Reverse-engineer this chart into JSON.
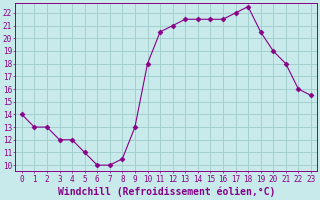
{
  "x": [
    0,
    1,
    2,
    3,
    4,
    5,
    6,
    7,
    8,
    9,
    10,
    11,
    12,
    13,
    14,
    15,
    16,
    17,
    18,
    19,
    20,
    21,
    22,
    23
  ],
  "y": [
    14,
    13,
    13,
    12,
    12,
    11,
    10,
    10,
    10.5,
    13,
    18,
    20.5,
    21,
    21.5,
    21.5,
    21.5,
    21.5,
    22,
    22.5,
    20.5,
    19,
    18,
    16,
    15.5
  ],
  "line_color": "#880088",
  "marker": "D",
  "marker_size": 2.5,
  "bg_color": "#c8eaea",
  "grid_color": "#a0cccc",
  "xlabel": "Windchill (Refroidissement éolien,°C)",
  "xlabel_fontsize": 7,
  "ylabel_ticks": [
    10,
    11,
    12,
    13,
    14,
    15,
    16,
    17,
    18,
    19,
    20,
    21,
    22
  ],
  "xlim": [
    -0.5,
    23.5
  ],
  "ylim": [
    9.5,
    22.8
  ],
  "tick_fontsize": 5.5
}
